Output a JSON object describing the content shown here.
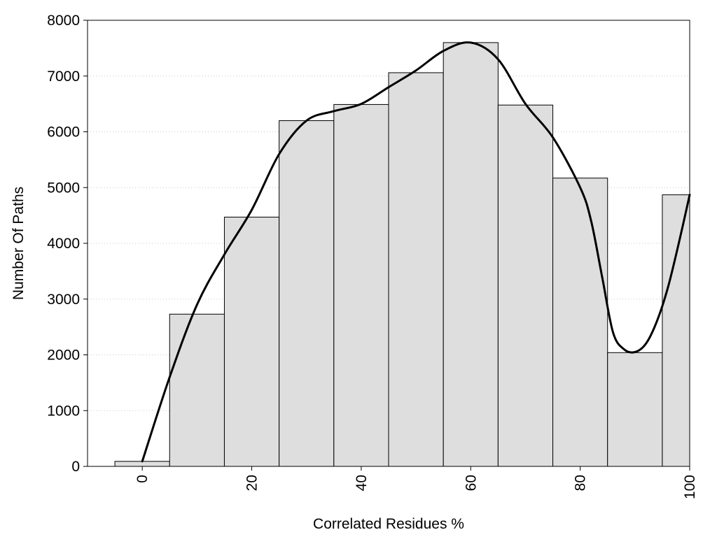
{
  "chart_data": {
    "type": "bar",
    "title": "",
    "xlabel": "Correlated Residues %",
    "ylabel": "Number Of Paths",
    "xlim": [
      -10,
      100
    ],
    "ylim": [
      0,
      8000
    ],
    "grid": "horizontal dotted",
    "x_ticks": [
      0,
      20,
      40,
      60,
      80,
      100
    ],
    "y_ticks": [
      0,
      1000,
      2000,
      3000,
      4000,
      5000,
      6000,
      7000,
      8000
    ],
    "bin_width": 10,
    "bins": [
      {
        "center": 0,
        "value": 90
      },
      {
        "center": 10,
        "value": 2730
      },
      {
        "center": 20,
        "value": 4470
      },
      {
        "center": 30,
        "value": 6200
      },
      {
        "center": 40,
        "value": 6490
      },
      {
        "center": 50,
        "value": 7060
      },
      {
        "center": 60,
        "value": 7600
      },
      {
        "center": 70,
        "value": 6480
      },
      {
        "center": 80,
        "value": 5170
      },
      {
        "center": 90,
        "value": 2040
      },
      {
        "center": 100,
        "value": 4870
      }
    ],
    "smooth_curve": {
      "x": [
        0,
        5,
        10,
        15,
        20,
        25,
        30,
        35,
        40,
        45,
        50,
        55,
        60,
        65,
        70,
        75,
        80,
        82,
        84,
        86,
        88,
        90,
        92,
        94,
        96,
        98,
        100
      ],
      "y": [
        90,
        1600,
        2900,
        3800,
        4600,
        5600,
        6200,
        6370,
        6500,
        6800,
        7100,
        7450,
        7600,
        7300,
        6500,
        5900,
        5000,
        4400,
        3400,
        2400,
        2100,
        2050,
        2200,
        2600,
        3200,
        4000,
        4870
      ]
    },
    "colors": {
      "bar_fill": "#dedede",
      "bar_stroke": "#000000",
      "curve": "#000000",
      "grid": "#c8c8c8"
    }
  }
}
